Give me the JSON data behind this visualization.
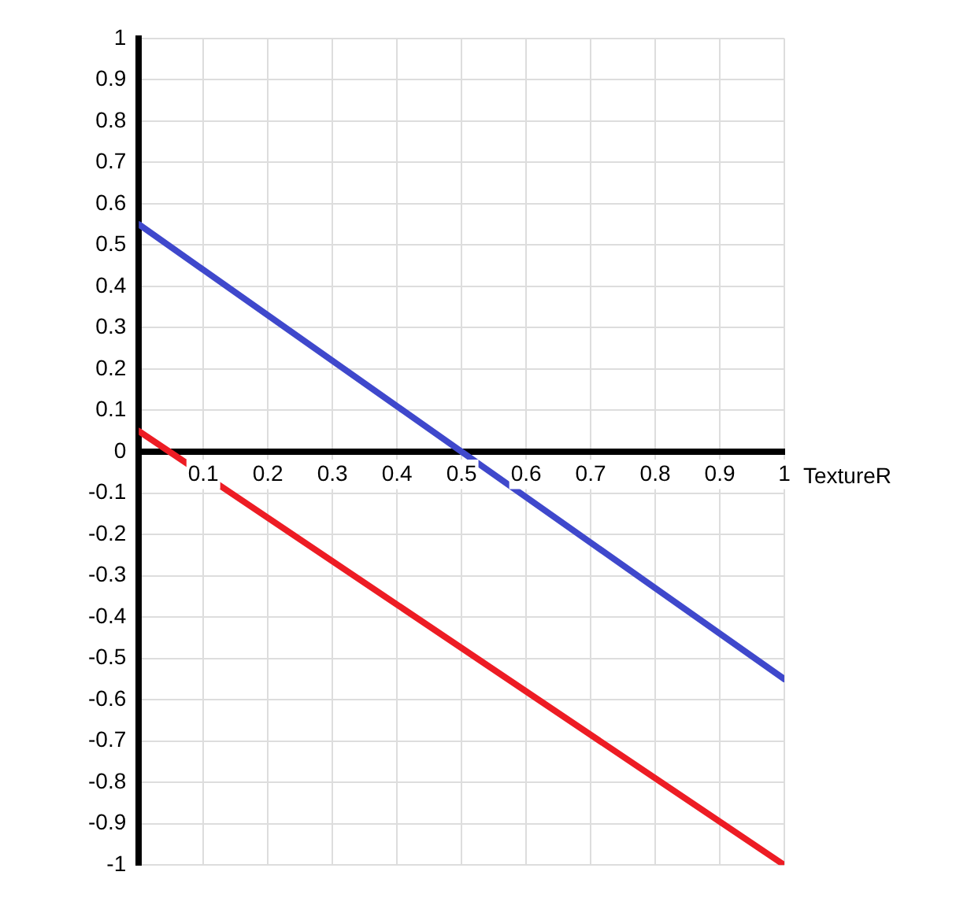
{
  "chart_data": {
    "type": "line",
    "xlabel": "TextureR",
    "x": [
      0,
      1
    ],
    "series": [
      {
        "color": "#3f48cc",
        "values": [
          0.55,
          -0.55
        ]
      },
      {
        "color": "#ed1c24",
        "values": [
          0.05,
          -1
        ]
      }
    ],
    "xlim": [
      0,
      1
    ],
    "ylim": [
      -1,
      1
    ],
    "xticks": [
      0.1,
      0.2,
      0.3,
      0.4,
      0.5,
      0.6,
      0.7,
      0.8,
      0.9,
      1
    ],
    "yticks": [
      -1,
      -0.9,
      -0.8,
      -0.7,
      -0.6,
      -0.5,
      -0.4,
      -0.3,
      -0.2,
      -0.1,
      0,
      0.1,
      0.2,
      0.3,
      0.4,
      0.5,
      0.6,
      0.7,
      0.8,
      0.9,
      1
    ],
    "grid": true,
    "legend": false,
    "marker": "none",
    "line_style": "solid"
  }
}
